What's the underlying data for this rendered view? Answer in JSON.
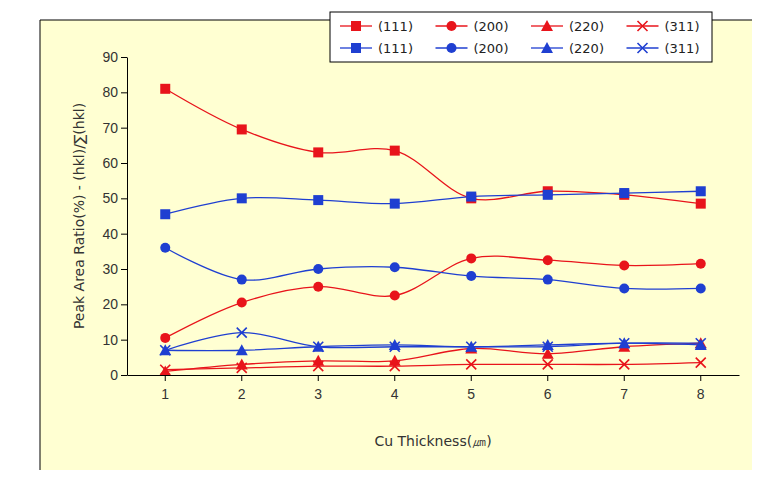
{
  "chart_data": {
    "type": "line",
    "x_label": "Cu Thickness(㎛)",
    "y_label": "Peak Area Ratio(%) - (hkl)/∑(hkl)",
    "categories": [
      "1",
      "2",
      "3",
      "4",
      "5",
      "6",
      "7",
      "8"
    ],
    "series": [
      {
        "name": "(111)",
        "color": "#e8141b",
        "marker": "square",
        "values": [
          81,
          69.5,
          63,
          63.5,
          50,
          52,
          51,
          48.5
        ]
      },
      {
        "name": "(200)",
        "color": "#e8141b",
        "marker": "circle",
        "values": [
          10.5,
          20.5,
          25,
          22.5,
          33,
          32.5,
          31,
          31.5
        ]
      },
      {
        "name": "(220)",
        "color": "#e8141b",
        "marker": "triangle",
        "values": [
          1,
          3,
          4,
          4,
          7.5,
          6,
          8,
          9
        ]
      },
      {
        "name": "(311)",
        "color": "#e8141b",
        "marker": "x",
        "values": [
          1.5,
          2,
          2.5,
          2.5,
          3,
          3,
          3,
          3.5
        ]
      },
      {
        "name": "(111)",
        "color": "#1f3fd1",
        "marker": "square",
        "values": [
          45.5,
          50,
          49.5,
          48.5,
          50.5,
          51,
          51.5,
          52
        ]
      },
      {
        "name": "(200)",
        "color": "#1f3fd1",
        "marker": "circle",
        "values": [
          36,
          27,
          30,
          30.5,
          28,
          27,
          24.5,
          24.5
        ]
      },
      {
        "name": "(220)",
        "color": "#1f3fd1",
        "marker": "triangle",
        "values": [
          7,
          7,
          8,
          8.5,
          8,
          8.5,
          9,
          8.5
        ]
      },
      {
        "name": "(311)",
        "color": "#1f3fd1",
        "marker": "x",
        "values": [
          7,
          12,
          8,
          8,
          8,
          8,
          9,
          9
        ]
      }
    ],
    "ylim": [
      0,
      90
    ],
    "yticks": [
      0,
      10,
      20,
      30,
      40,
      50,
      60,
      70,
      80,
      90
    ],
    "legend": "top-right",
    "grid": false
  }
}
